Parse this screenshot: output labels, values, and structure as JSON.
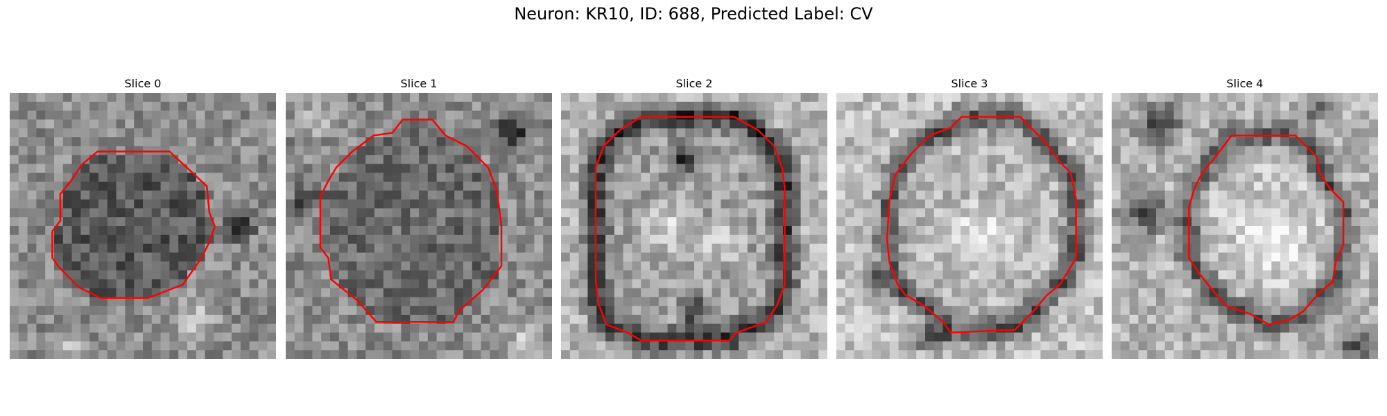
{
  "figure": {
    "title": "Neuron: KR10, ID: 688, Predicted Label: CV"
  },
  "colors": {
    "contour": "#ff0000",
    "image_colormap": "grayscale"
  },
  "slices": [
    {
      "label": "Slice 0",
      "contour_points": [
        [
          0.33,
          0.22
        ],
        [
          0.6,
          0.22
        ],
        [
          0.74,
          0.35
        ],
        [
          0.75,
          0.45
        ],
        [
          0.77,
          0.5
        ],
        [
          0.75,
          0.56
        ],
        [
          0.72,
          0.62
        ],
        [
          0.65,
          0.72
        ],
        [
          0.52,
          0.77
        ],
        [
          0.34,
          0.77
        ],
        [
          0.26,
          0.73
        ],
        [
          0.19,
          0.66
        ],
        [
          0.16,
          0.62
        ],
        [
          0.16,
          0.52
        ],
        [
          0.19,
          0.48
        ],
        [
          0.19,
          0.38
        ],
        [
          0.23,
          0.33
        ],
        [
          0.27,
          0.27
        ]
      ],
      "shading": {
        "inner": 0.35,
        "outer": 0.55,
        "bright_spots": [
          [
            0.7,
            0.85,
            0.12
          ],
          [
            0.2,
            0.95,
            0.1
          ]
        ],
        "dark_spots": [
          [
            0.86,
            0.5,
            0.08
          ]
        ]
      }
    },
    {
      "label": "Slice 1",
      "contour_points": [
        [
          0.44,
          0.1
        ],
        [
          0.55,
          0.1
        ],
        [
          0.6,
          0.16
        ],
        [
          0.68,
          0.2
        ],
        [
          0.76,
          0.28
        ],
        [
          0.79,
          0.36
        ],
        [
          0.8,
          0.42
        ],
        [
          0.81,
          0.5
        ],
        [
          0.81,
          0.65
        ],
        [
          0.74,
          0.74
        ],
        [
          0.65,
          0.82
        ],
        [
          0.63,
          0.86
        ],
        [
          0.34,
          0.86
        ],
        [
          0.27,
          0.78
        ],
        [
          0.17,
          0.7
        ],
        [
          0.16,
          0.62
        ],
        [
          0.13,
          0.58
        ],
        [
          0.13,
          0.39
        ],
        [
          0.16,
          0.33
        ],
        [
          0.19,
          0.28
        ],
        [
          0.25,
          0.22
        ],
        [
          0.33,
          0.16
        ],
        [
          0.4,
          0.15
        ]
      ],
      "shading": {
        "inner": 0.42,
        "outer": 0.55,
        "bright_spots": [
          [
            0.1,
            0.1,
            0.1
          ],
          [
            0.9,
            0.92,
            0.1
          ]
        ],
        "dark_spots": [
          [
            0.85,
            0.15,
            0.1
          ],
          [
            0.08,
            0.4,
            0.07
          ]
        ]
      }
    },
    {
      "label": "Slice 2",
      "contour_points": [
        [
          0.3,
          0.09
        ],
        [
          0.65,
          0.09
        ],
        [
          0.74,
          0.14
        ],
        [
          0.8,
          0.2
        ],
        [
          0.83,
          0.28
        ],
        [
          0.84,
          0.36
        ],
        [
          0.84,
          0.72
        ],
        [
          0.81,
          0.8
        ],
        [
          0.77,
          0.86
        ],
        [
          0.66,
          0.9
        ],
        [
          0.63,
          0.93
        ],
        [
          0.3,
          0.93
        ],
        [
          0.25,
          0.9
        ],
        [
          0.17,
          0.87
        ],
        [
          0.14,
          0.79
        ],
        [
          0.13,
          0.7
        ],
        [
          0.13,
          0.28
        ],
        [
          0.16,
          0.2
        ],
        [
          0.22,
          0.14
        ]
      ],
      "shading": {
        "inner": 0.62,
        "outer": 0.7,
        "ring": 0.15,
        "bright_spots": [
          [
            0.4,
            0.5,
            0.14
          ],
          [
            0.6,
            0.55,
            0.12
          ]
        ],
        "dark_spots": [
          [
            0.46,
            0.25,
            0.08
          ],
          [
            0.5,
            0.82,
            0.08
          ]
        ]
      }
    },
    {
      "label": "Slice 3",
      "contour_points": [
        [
          0.47,
          0.09
        ],
        [
          0.69,
          0.09
        ],
        [
          0.73,
          0.13
        ],
        [
          0.78,
          0.18
        ],
        [
          0.84,
          0.26
        ],
        [
          0.88,
          0.3
        ],
        [
          0.9,
          0.4
        ],
        [
          0.9,
          0.62
        ],
        [
          0.84,
          0.72
        ],
        [
          0.79,
          0.76
        ],
        [
          0.74,
          0.82
        ],
        [
          0.67,
          0.89
        ],
        [
          0.43,
          0.9
        ],
        [
          0.4,
          0.86
        ],
        [
          0.33,
          0.8
        ],
        [
          0.26,
          0.76
        ],
        [
          0.23,
          0.72
        ],
        [
          0.2,
          0.64
        ],
        [
          0.19,
          0.55
        ],
        [
          0.2,
          0.4
        ],
        [
          0.22,
          0.31
        ],
        [
          0.28,
          0.23
        ],
        [
          0.35,
          0.16
        ],
        [
          0.43,
          0.13
        ]
      ],
      "shading": {
        "inner": 0.72,
        "outer": 0.75,
        "ring": 0.28,
        "bright_spots": [
          [
            0.55,
            0.55,
            0.16
          ]
        ],
        "dark_spots": [
          [
            0.35,
            0.92,
            0.08
          ],
          [
            0.13,
            0.7,
            0.07
          ]
        ]
      }
    },
    {
      "label": "Slice 4",
      "contour_points": [
        [
          0.45,
          0.16
        ],
        [
          0.69,
          0.16
        ],
        [
          0.73,
          0.2
        ],
        [
          0.77,
          0.24
        ],
        [
          0.78,
          0.3
        ],
        [
          0.82,
          0.36
        ],
        [
          0.87,
          0.41
        ],
        [
          0.87,
          0.57
        ],
        [
          0.84,
          0.64
        ],
        [
          0.83,
          0.71
        ],
        [
          0.78,
          0.75
        ],
        [
          0.72,
          0.82
        ],
        [
          0.67,
          0.85
        ],
        [
          0.59,
          0.87
        ],
        [
          0.52,
          0.83
        ],
        [
          0.43,
          0.8
        ],
        [
          0.37,
          0.73
        ],
        [
          0.33,
          0.68
        ],
        [
          0.29,
          0.62
        ],
        [
          0.29,
          0.43
        ],
        [
          0.31,
          0.36
        ],
        [
          0.34,
          0.3
        ],
        [
          0.39,
          0.24
        ]
      ],
      "shading": {
        "inner": 0.78,
        "outer": 0.7,
        "ring": 0.3,
        "bright_spots": [
          [
            0.6,
            0.55,
            0.15
          ]
        ],
        "dark_spots": [
          [
            0.18,
            0.12,
            0.12
          ],
          [
            0.12,
            0.45,
            0.12
          ],
          [
            0.92,
            0.95,
            0.1
          ],
          [
            0.78,
            0.06,
            0.07
          ]
        ]
      }
    }
  ]
}
